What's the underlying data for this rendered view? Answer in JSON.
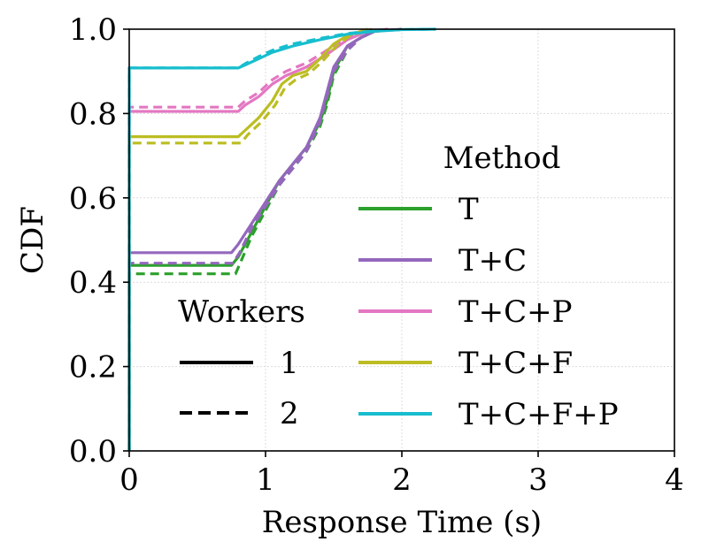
{
  "chart_data": {
    "type": "line",
    "title": "",
    "xlabel": "Response Time (s)",
    "ylabel": "CDF",
    "xlim": [
      0,
      4
    ],
    "ylim": [
      0,
      1
    ],
    "grid": true,
    "x_ticks": [
      0,
      1,
      2,
      3,
      4
    ],
    "x_tick_labels": [
      "0",
      "1",
      "2",
      "3",
      "4"
    ],
    "y_ticks": [
      0.0,
      0.2,
      0.4,
      0.6,
      0.8,
      1.0
    ],
    "y_tick_labels": [
      "0.0",
      "0.2",
      "0.4",
      "0.6",
      "0.8",
      "1.0"
    ],
    "legend_method": {
      "title": "Method",
      "placement": "center-right",
      "entries": [
        {
          "label": "T",
          "color": "#2ca02c"
        },
        {
          "label": "T+C",
          "color": "#9467bd"
        },
        {
          "label": "T+C+P",
          "color": "#e377c2"
        },
        {
          "label": "T+C+F",
          "color": "#bcbd22"
        },
        {
          "label": "T+C+F+P",
          "color": "#17becf"
        }
      ]
    },
    "legend_workers": {
      "title": "Workers",
      "placement": "lower-left",
      "entries": [
        {
          "label": "1",
          "style": "solid"
        },
        {
          "label": "2",
          "style": "dashed"
        }
      ]
    },
    "series": [
      {
        "method": "T",
        "workers": "1",
        "color": "#2ca02c",
        "style": "solid",
        "x": [
          0,
          0,
          0.75,
          0.8,
          0.9,
          1.0,
          1.1,
          1.2,
          1.3,
          1.4,
          1.45,
          1.5,
          1.6,
          1.7,
          1.8,
          1.9
        ],
        "y": [
          0,
          0.44,
          0.44,
          0.46,
          0.52,
          0.58,
          0.64,
          0.68,
          0.72,
          0.78,
          0.83,
          0.9,
          0.96,
          0.98,
          0.995,
          1.0
        ]
      },
      {
        "method": "T",
        "workers": "2",
        "color": "#2ca02c",
        "style": "dashed",
        "x": [
          0,
          0,
          0.78,
          0.82,
          0.9,
          1.0,
          1.1,
          1.2,
          1.3,
          1.4,
          1.45,
          1.5,
          1.6,
          1.7,
          1.8,
          1.9
        ],
        "y": [
          0,
          0.42,
          0.42,
          0.45,
          0.51,
          0.57,
          0.63,
          0.67,
          0.71,
          0.77,
          0.82,
          0.89,
          0.95,
          0.98,
          0.995,
          1.0
        ]
      },
      {
        "method": "T+C",
        "workers": "1",
        "color": "#9467bd",
        "style": "solid",
        "x": [
          0,
          0,
          0.75,
          0.8,
          0.9,
          1.0,
          1.1,
          1.2,
          1.3,
          1.4,
          1.45,
          1.5,
          1.6,
          1.7,
          1.8,
          2.0
        ],
        "y": [
          0,
          0.47,
          0.47,
          0.49,
          0.54,
          0.59,
          0.64,
          0.68,
          0.72,
          0.79,
          0.85,
          0.91,
          0.96,
          0.98,
          0.995,
          1.0
        ]
      },
      {
        "method": "T+C",
        "workers": "2",
        "color": "#9467bd",
        "style": "dashed",
        "x": [
          0,
          0,
          0.76,
          0.81,
          0.9,
          1.0,
          1.1,
          1.2,
          1.3,
          1.4,
          1.45,
          1.5,
          1.6,
          1.7,
          1.8,
          2.0
        ],
        "y": [
          0,
          0.445,
          0.445,
          0.47,
          0.53,
          0.58,
          0.63,
          0.67,
          0.71,
          0.78,
          0.84,
          0.9,
          0.95,
          0.98,
          0.995,
          1.0
        ]
      },
      {
        "method": "T+C+P",
        "workers": "1",
        "color": "#e377c2",
        "style": "solid",
        "x": [
          0,
          0,
          0.8,
          0.85,
          0.95,
          1.05,
          1.15,
          1.3,
          1.45,
          1.6,
          1.75,
          1.9
        ],
        "y": [
          0,
          0.805,
          0.805,
          0.82,
          0.84,
          0.87,
          0.89,
          0.91,
          0.94,
          0.975,
          0.995,
          1.0
        ]
      },
      {
        "method": "T+C+P",
        "workers": "2",
        "color": "#e377c2",
        "style": "dashed",
        "x": [
          0,
          0,
          0.8,
          0.85,
          0.95,
          1.05,
          1.15,
          1.3,
          1.45,
          1.6,
          1.75,
          1.9
        ],
        "y": [
          0,
          0.815,
          0.815,
          0.83,
          0.85,
          0.88,
          0.9,
          0.92,
          0.95,
          0.98,
          0.995,
          1.0
        ]
      },
      {
        "method": "T+C+F",
        "workers": "1",
        "color": "#bcbd22",
        "style": "solid",
        "x": [
          0,
          0,
          0.8,
          0.85,
          0.95,
          1.05,
          1.12,
          1.2,
          1.3,
          1.4,
          1.5,
          1.6,
          1.75
        ],
        "y": [
          0,
          0.745,
          0.745,
          0.76,
          0.79,
          0.83,
          0.87,
          0.89,
          0.9,
          0.93,
          0.965,
          0.985,
          1.0
        ]
      },
      {
        "method": "T+C+F",
        "workers": "2",
        "color": "#bcbd22",
        "style": "dashed",
        "x": [
          0,
          0,
          0.82,
          0.87,
          0.97,
          1.07,
          1.14,
          1.22,
          1.32,
          1.42,
          1.52,
          1.62,
          1.78
        ],
        "y": [
          0,
          0.73,
          0.73,
          0.75,
          0.78,
          0.82,
          0.86,
          0.88,
          0.895,
          0.925,
          0.96,
          0.985,
          1.0
        ]
      },
      {
        "method": "T+C+F+P",
        "workers": "1",
        "color": "#17becf",
        "style": "solid",
        "x": [
          0,
          0,
          0.8,
          0.85,
          0.95,
          1.05,
          1.2,
          1.4,
          1.6,
          1.8,
          2.0,
          2.25
        ],
        "y": [
          0,
          0.908,
          0.908,
          0.915,
          0.93,
          0.945,
          0.96,
          0.975,
          0.988,
          0.995,
          0.999,
          1.0
        ]
      },
      {
        "method": "T+C+F+P",
        "workers": "2",
        "color": "#17becf",
        "style": "dashed",
        "x": [
          0,
          0,
          0.8,
          0.85,
          0.95,
          1.05,
          1.2,
          1.4,
          1.6,
          1.8,
          2.0,
          2.25
        ],
        "y": [
          0,
          0.908,
          0.908,
          0.918,
          0.935,
          0.95,
          0.965,
          0.978,
          0.99,
          0.996,
          0.999,
          1.0
        ]
      }
    ]
  }
}
